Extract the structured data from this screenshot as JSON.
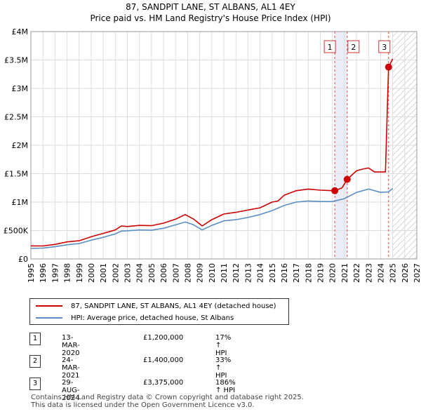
{
  "title_line1": "87, SANDPIT LANE, ST ALBANS, AL1 4EY",
  "title_line2": "Price paid vs. HM Land Registry's House Price Index (HPI)",
  "chart_data": {
    "type": "line",
    "x_range": [
      1995,
      2027
    ],
    "y_range": [
      0,
      4000000
    ],
    "x_ticks": [
      "1995",
      "1996",
      "1997",
      "1998",
      "1999",
      "2000",
      "2001",
      "2002",
      "2003",
      "2004",
      "2005",
      "2006",
      "2007",
      "2008",
      "2009",
      "2010",
      "2011",
      "2012",
      "2013",
      "2014",
      "2015",
      "2016",
      "2017",
      "2018",
      "2019",
      "2020",
      "2021",
      "2022",
      "2023",
      "2024",
      "2025",
      "2026",
      "2027"
    ],
    "y_ticks": [
      {
        "value": 0,
        "label": "£0"
      },
      {
        "value": 500000,
        "label": "£500K"
      },
      {
        "value": 1000000,
        "label": "£1M"
      },
      {
        "value": 1500000,
        "label": "£1.5M"
      },
      {
        "value": 2000000,
        "label": "£2M"
      },
      {
        "value": 2500000,
        "label": "£2.5M"
      },
      {
        "value": 3000000,
        "label": "£3M"
      },
      {
        "value": 3500000,
        "label": "£3.5M"
      },
      {
        "value": 4000000,
        "label": "£4M"
      }
    ],
    "forecast_start": 2025.0,
    "series": [
      {
        "name": "87, SANDPIT LANE, ST ALBANS, AL1 4EY (detached house)",
        "color": "#cc0000",
        "points": [
          [
            1995,
            230000
          ],
          [
            1996,
            228000
          ],
          [
            1997,
            255000
          ],
          [
            1998,
            300000
          ],
          [
            1999,
            320000
          ],
          [
            2000,
            390000
          ],
          [
            2001,
            450000
          ],
          [
            2002,
            510000
          ],
          [
            2002.5,
            580000
          ],
          [
            2003,
            570000
          ],
          [
            2004,
            590000
          ],
          [
            2005,
            585000
          ],
          [
            2006,
            630000
          ],
          [
            2007,
            700000
          ],
          [
            2007.8,
            780000
          ],
          [
            2008.5,
            700000
          ],
          [
            2009.2,
            580000
          ],
          [
            2010,
            690000
          ],
          [
            2011,
            790000
          ],
          [
            2012,
            820000
          ],
          [
            2013,
            860000
          ],
          [
            2014,
            900000
          ],
          [
            2015,
            1000000
          ],
          [
            2015.5,
            1020000
          ],
          [
            2016,
            1120000
          ],
          [
            2017,
            1200000
          ],
          [
            2018,
            1230000
          ],
          [
            2019,
            1210000
          ],
          [
            2020.2,
            1200000
          ],
          [
            2020.8,
            1250000
          ],
          [
            2021.23,
            1400000
          ],
          [
            2022,
            1550000
          ],
          [
            2022.5,
            1580000
          ],
          [
            2023,
            1600000
          ],
          [
            2023.5,
            1530000
          ],
          [
            2024.4,
            1530000
          ],
          [
            2024.66,
            3375000
          ],
          [
            2025,
            3520000
          ]
        ]
      },
      {
        "name": "HPI: Average price, detached house, St Albans",
        "color": "#5b8ec4",
        "points": [
          [
            1995,
            185000
          ],
          [
            1996,
            190000
          ],
          [
            1997,
            215000
          ],
          [
            1998,
            250000
          ],
          [
            1999,
            270000
          ],
          [
            2000,
            330000
          ],
          [
            2001,
            380000
          ],
          [
            2002,
            440000
          ],
          [
            2002.5,
            490000
          ],
          [
            2003,
            495000
          ],
          [
            2004,
            510000
          ],
          [
            2005,
            505000
          ],
          [
            2006,
            540000
          ],
          [
            2007,
            600000
          ],
          [
            2007.8,
            650000
          ],
          [
            2008.5,
            600000
          ],
          [
            2009.2,
            510000
          ],
          [
            2010,
            590000
          ],
          [
            2011,
            670000
          ],
          [
            2012,
            690000
          ],
          [
            2013,
            730000
          ],
          [
            2014,
            780000
          ],
          [
            2015,
            850000
          ],
          [
            2016,
            940000
          ],
          [
            2017,
            1000000
          ],
          [
            2018,
            1020000
          ],
          [
            2019,
            1010000
          ],
          [
            2020,
            1010000
          ],
          [
            2021,
            1060000
          ],
          [
            2022,
            1170000
          ],
          [
            2022.5,
            1200000
          ],
          [
            2023,
            1230000
          ],
          [
            2024,
            1170000
          ],
          [
            2024.66,
            1180000
          ],
          [
            2025,
            1240000
          ]
        ]
      }
    ],
    "sales": [
      {
        "label": "1",
        "x": 2020.2,
        "value": 1200000
      },
      {
        "label": "2",
        "x": 2021.23,
        "value": 1400000
      },
      {
        "label": "3",
        "x": 2024.66,
        "value": 3375000
      }
    ],
    "shaded_periods": [
      [
        2020.2,
        2021.23
      ]
    ]
  },
  "legend": {
    "property": "87, SANDPIT LANE, ST ALBANS, AL1 4EY (detached house)",
    "hpi": "HPI: Average price, detached house, St Albans",
    "property_color": "#cc0000",
    "hpi_color": "#5b8ec4"
  },
  "transactions": [
    {
      "num": "1",
      "date": "13-MAR-2020",
      "price": "£1,200,000",
      "hpi": "17% ↑ HPI"
    },
    {
      "num": "2",
      "date": "24-MAR-2021",
      "price": "£1,400,000",
      "hpi": "33% ↑ HPI"
    },
    {
      "num": "3",
      "date": "29-AUG-2024",
      "price": "£3,375,000",
      "hpi": "186% ↑ HPI"
    }
  ],
  "footer_line1": "Contains HM Land Registry data © Crown copyright and database right 2025.",
  "footer_line2": "This data is licensed under the Open Government Licence v3.0."
}
